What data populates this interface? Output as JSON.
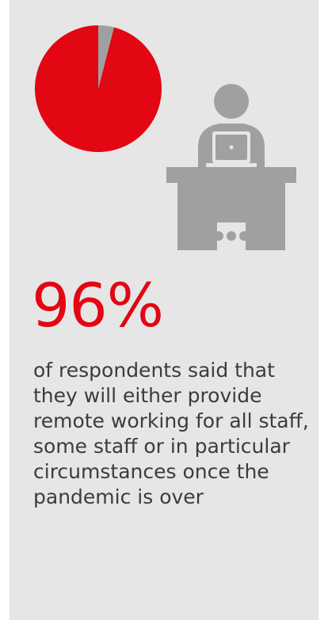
{
  "chart_data": {
    "type": "pie",
    "slices": [
      {
        "label": "",
        "value": 96,
        "color": "#e30613"
      },
      {
        "label": "",
        "value": 4,
        "color": "#a0a0a0"
      }
    ]
  },
  "icon": {
    "name": "person-at-desk-with-laptop-icon",
    "color": "#a0a0a0"
  },
  "stat": {
    "value": "96%",
    "description": "of respondents said that they will either provide remote working for all staff, some staff or in particular circumstances once the pandemic is over"
  },
  "colors": {
    "accent": "#e30613",
    "background": "#e6e6e6",
    "text": "#3c3c3c"
  }
}
